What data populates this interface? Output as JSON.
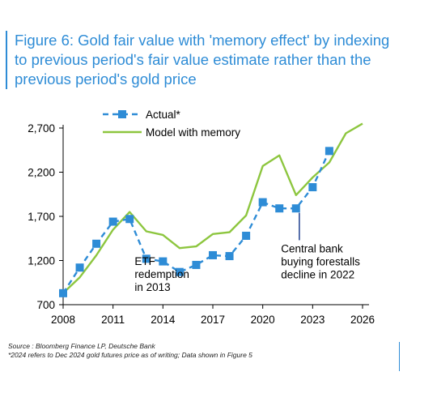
{
  "title_lines": [
    "Figure 6: Gold fair value with 'memory effect' by indexing",
    "to previous period's fair value estimate rather than the",
    "previous period's gold price"
  ],
  "chart_data": {
    "type": "line",
    "xlim": [
      2008,
      2026
    ],
    "ylim": [
      700,
      2700
    ],
    "x_ticks": [
      "2008",
      "2011",
      "2014",
      "2017",
      "2020",
      "2023",
      "2026"
    ],
    "y_ticks": [
      "700",
      "1,200",
      "1,700",
      "2,200",
      "2,700"
    ],
    "legend_position": "top-left",
    "series": [
      {
        "name": "Actual*",
        "style": "dashed-square",
        "color": "#2e8cd6",
        "x": [
          2008,
          2009,
          2010,
          2011,
          2012,
          2013,
          2014,
          2015,
          2016,
          2017,
          2018,
          2019,
          2020,
          2021,
          2022,
          2023,
          2024
        ],
        "y": [
          830,
          1120,
          1390,
          1640,
          1670,
          1220,
          1190,
          1070,
          1150,
          1260,
          1250,
          1480,
          1860,
          1790,
          1790,
          2030,
          2440
        ]
      },
      {
        "name": "Model with memory",
        "style": "solid",
        "color": "#8dc63f",
        "x": [
          2008,
          2009,
          2010,
          2011,
          2012,
          2013,
          2014,
          2015,
          2016,
          2017,
          2018,
          2019,
          2020,
          2021,
          2022,
          2023,
          2024,
          2025,
          2026
        ],
        "y": [
          830,
          1010,
          1260,
          1550,
          1750,
          1530,
          1490,
          1340,
          1360,
          1500,
          1520,
          1710,
          2270,
          2390,
          1940,
          2140,
          2310,
          2640,
          2750
        ]
      }
    ],
    "annotations": [
      {
        "lines": [
          "ETF",
          "redemption",
          "in 2013"
        ],
        "x": 2012.3,
        "y": 1150
      },
      {
        "lines": [
          "Central bank",
          "buying forestalls",
          "decline in 2022"
        ],
        "x": 2021.1,
        "y": 1290
      }
    ]
  },
  "footnote_lines": [
    "Source : Bloomberg Finance LP, Deutsche Bank",
    "*2024 refers to Dec 2024 gold futures price as of writing; Data shown in Figure 5"
  ]
}
